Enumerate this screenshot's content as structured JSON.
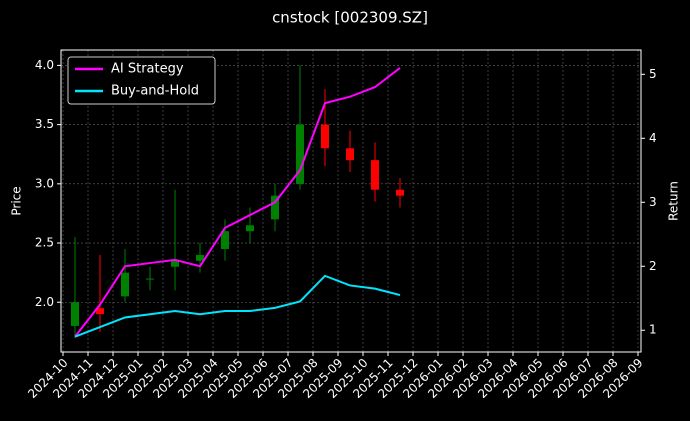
{
  "chart_data": {
    "type": "candlestick",
    "title": "cnstock [002309.SZ]",
    "ylabel": "Price",
    "y2label": "Return",
    "x": [
      "2024-10",
      "2024-11",
      "2024-12",
      "2025-01",
      "2025-02",
      "2025-03",
      "2025-04",
      "2025-05",
      "2025-06",
      "2025-07",
      "2025-08",
      "2025-09",
      "2025-10",
      "2025-11"
    ],
    "open": [
      1.8,
      1.95,
      2.05,
      2.2,
      2.3,
      2.35,
      2.45,
      2.6,
      2.7,
      3.0,
      3.5,
      3.3,
      3.2,
      2.95
    ],
    "high": [
      2.55,
      2.4,
      2.45,
      2.3,
      2.95,
      2.5,
      2.7,
      2.8,
      3.0,
      4.0,
      3.8,
      3.45,
      3.35,
      3.05
    ],
    "low": [
      1.7,
      1.75,
      2.0,
      2.1,
      2.1,
      2.25,
      2.35,
      2.5,
      2.6,
      2.95,
      3.15,
      3.1,
      2.85,
      2.8
    ],
    "close": [
      2.0,
      1.9,
      2.25,
      2.2,
      2.35,
      2.4,
      2.6,
      2.65,
      2.9,
      3.5,
      3.3,
      3.2,
      2.95,
      2.9
    ],
    "up_color": "#008000",
    "down_color": "#ff0000",
    "series": [
      {
        "name": "AI Strategy",
        "color": "#ff00ff",
        "axis": "y2",
        "values": [
          0.9,
          1.4,
          2.0,
          2.05,
          2.1,
          2.0,
          2.6,
          2.8,
          3.0,
          3.5,
          4.55,
          4.65,
          4.8,
          5.1
        ]
      },
      {
        "name": "Buy-and-Hold",
        "color": "#00e5ff",
        "axis": "y2",
        "values": [
          0.9,
          1.05,
          1.2,
          1.25,
          1.3,
          1.25,
          1.3,
          1.3,
          1.35,
          1.45,
          1.85,
          1.7,
          1.65,
          1.55
        ]
      }
    ],
    "xlim": [
      "2024-10",
      "2026-09"
    ],
    "xticks": [
      "2024-10",
      "2024-11",
      "2024-12",
      "2025-01",
      "2025-02",
      "2025-03",
      "2025-04",
      "2025-05",
      "2025-06",
      "2025-07",
      "2025-08",
      "2025-09",
      "2025-10",
      "2025-11",
      "2025-12",
      "2026-01",
      "2026-02",
      "2026-03",
      "2026-04",
      "2026-05",
      "2026-06",
      "2026-07",
      "2026-08",
      "2026-09"
    ],
    "ylim": [
      1.58,
      4.13
    ],
    "yticks": [
      {
        "value": 2,
        "label": "2.0"
      },
      2.5,
      {
        "value": 3,
        "label": "3.0"
      },
      3.5,
      {
        "value": 4,
        "label": "4.0"
      }
    ],
    "y2lim": [
      0.66,
      5.38
    ],
    "y2ticks": [
      1,
      2,
      3,
      4,
      5
    ],
    "grid": true,
    "legend": "upper left"
  }
}
